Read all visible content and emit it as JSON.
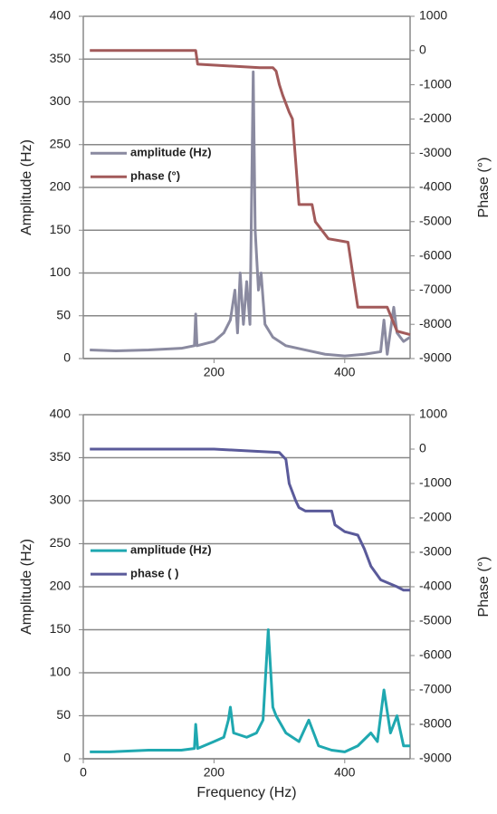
{
  "chart_data": [
    {
      "type": "line",
      "y_label": "Amplitude (Hz)",
      "y2_label": "Phase (°)",
      "xlim": [
        0,
        500
      ],
      "xticks": [
        200,
        400
      ],
      "ylim": [
        0,
        400
      ],
      "yticks": [
        0,
        50,
        100,
        150,
        200,
        250,
        300,
        350,
        400
      ],
      "y2lim": [
        -9000,
        1000
      ],
      "y2ticks": [
        -9000,
        -8000,
        -7000,
        -6000,
        -5000,
        -4000,
        -3000,
        -2000,
        -1000,
        0,
        1000
      ],
      "grid": true,
      "legend": "center-left",
      "series": [
        {
          "name": "amplitude (Hz)",
          "color": "#8a8aa0",
          "x": [
            10,
            50,
            100,
            150,
            170,
            172,
            174,
            200,
            215,
            225,
            232,
            236,
            240,
            245,
            250,
            255,
            260,
            263,
            268,
            272,
            278,
            290,
            310,
            340,
            370,
            400,
            430,
            455,
            460,
            465,
            475,
            480,
            490,
            500
          ],
          "values": [
            10,
            9,
            10,
            12,
            15,
            52,
            15,
            20,
            30,
            45,
            80,
            30,
            100,
            40,
            90,
            40,
            335,
            150,
            80,
            100,
            40,
            25,
            15,
            10,
            5,
            3,
            5,
            8,
            45,
            5,
            60,
            30,
            20,
            25
          ]
        },
        {
          "name": "phase (°)",
          "color": "#a25a5a",
          "axis": "y2",
          "x": [
            10,
            172,
            175,
            270,
            290,
            295,
            300,
            305,
            315,
            320,
            330,
            350,
            355,
            375,
            405,
            420,
            465,
            480,
            500
          ],
          "values": [
            0,
            0,
            -400,
            -500,
            -500,
            -600,
            -1000,
            -1300,
            -1800,
            -2000,
            -4500,
            -4500,
            -5000,
            -5500,
            -5600,
            -7500,
            -7500,
            -8200,
            -8300
          ]
        }
      ]
    },
    {
      "type": "line",
      "x_label": "Frequency (Hz)",
      "y_label": "Amplitude (Hz)",
      "y2_label": "Phase (°)",
      "xlim": [
        0,
        500
      ],
      "xticks": [
        0,
        200,
        400
      ],
      "ylim": [
        0,
        400
      ],
      "yticks": [
        0,
        50,
        100,
        150,
        200,
        250,
        300,
        350,
        400
      ],
      "y2lim": [
        -9000,
        1000
      ],
      "y2ticks": [
        -9000,
        -8000,
        -7000,
        -6000,
        -5000,
        -4000,
        -3000,
        -2000,
        -1000,
        0,
        1000
      ],
      "grid": true,
      "legend": "center-left",
      "series": [
        {
          "name": "amplitude (Hz)",
          "color": "#1fa8b0",
          "x": [
            10,
            40,
            100,
            150,
            170,
            172,
            175,
            200,
            215,
            222,
            225,
            230,
            250,
            265,
            275,
            283,
            290,
            295,
            310,
            330,
            345,
            360,
            380,
            400,
            420,
            440,
            450,
            460,
            470,
            480,
            490,
            500
          ],
          "values": [
            8,
            8,
            10,
            10,
            12,
            40,
            12,
            20,
            25,
            45,
            60,
            30,
            25,
            30,
            45,
            150,
            60,
            50,
            30,
            20,
            45,
            15,
            10,
            8,
            15,
            30,
            20,
            80,
            30,
            50,
            15,
            15
          ]
        },
        {
          "name": "phase ( )",
          "color": "#5a5a9a",
          "axis": "y2",
          "x": [
            10,
            200,
            250,
            300,
            310,
            315,
            325,
            330,
            340,
            380,
            385,
            400,
            420,
            430,
            440,
            455,
            480,
            490,
            500
          ],
          "values": [
            0,
            0,
            -50,
            -100,
            -300,
            -1000,
            -1500,
            -1700,
            -1800,
            -1800,
            -2200,
            -2400,
            -2500,
            -2900,
            -3400,
            -3800,
            -4000,
            -4100,
            -4100
          ]
        }
      ]
    }
  ]
}
